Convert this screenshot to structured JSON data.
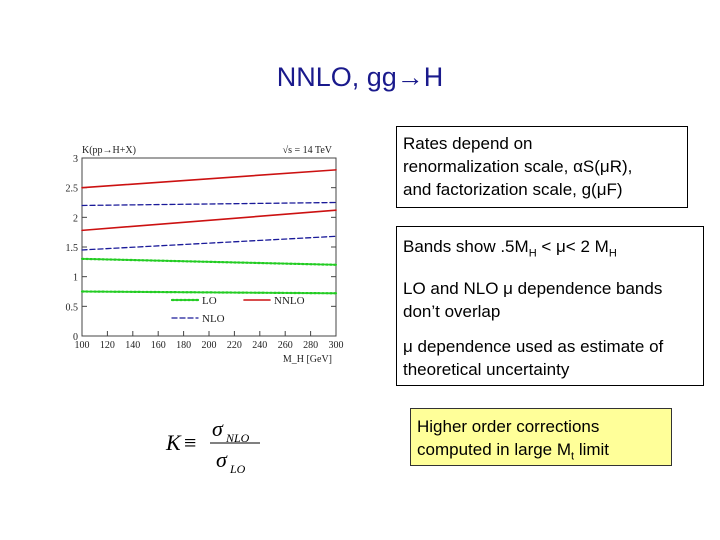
{
  "slide": {
    "title": "NNLO, gg→H"
  },
  "box1": {
    "line1": "Rates depend on",
    "line2": "renormalization scale, αS(μR),",
    "line3": "and factorization scale, g(μF)"
  },
  "box2": {
    "p1_prefix": "Bands show .5M",
    "p1_sub1": "H",
    "p1_mid": " < μ< 2 M",
    "p1_sub2": "H",
    "p2": "LO and NLO μ dependence bands don’t overlap",
    "p3": "μ dependence used as estimate of theoretical uncertainty"
  },
  "box3": {
    "line1": "Higher order corrections",
    "line2_prefix": "computed in large M",
    "line2_sub": "t",
    "line2_suffix": " limit"
  },
  "formula": {
    "K": "K",
    "equiv": "≡",
    "sigma": "σ",
    "num_sub": "NLO",
    "den_sub": "LO"
  },
  "chart_data": {
    "type": "line",
    "ylabel": "K(pp→H+X)",
    "annotation": "√s = 14 TeV",
    "xlabel": "M_H [GeV]",
    "xlim": [
      100,
      300
    ],
    "ylim": [
      0,
      3
    ],
    "x_ticks": [
      "100",
      "120",
      "140",
      "160",
      "180",
      "200",
      "220",
      "240",
      "260",
      "280",
      "300"
    ],
    "y_ticks": [
      "0",
      "0.5",
      "1",
      "1.5",
      "2",
      "2.5",
      "3"
    ],
    "legend": [
      {
        "label": "LO",
        "style": "dotted",
        "color": "#22cc22"
      },
      {
        "label": "NNLO",
        "style": "solid",
        "color": "#cc1111"
      },
      {
        "label": "NLO",
        "style": "dashed",
        "color": "#1a1a99"
      }
    ],
    "x": [
      100,
      300
    ],
    "series": [
      {
        "name": "NNLO upper",
        "style": "solid",
        "color": "#cc1111",
        "values": [
          2.5,
          2.8
        ]
      },
      {
        "name": "NNLO lower",
        "style": "solid",
        "color": "#cc1111",
        "values": [
          1.78,
          2.12
        ]
      },
      {
        "name": "NLO upper",
        "style": "dashed",
        "color": "#1a1a99",
        "values": [
          2.2,
          2.25
        ]
      },
      {
        "name": "NLO lower",
        "style": "dashed",
        "color": "#1a1a99",
        "values": [
          1.45,
          1.68
        ]
      },
      {
        "name": "LO upper",
        "style": "dotted",
        "color": "#22cc22",
        "values": [
          1.3,
          1.2
        ]
      },
      {
        "name": "LO lower",
        "style": "dotted",
        "color": "#22cc22",
        "values": [
          0.75,
          0.72
        ]
      }
    ]
  }
}
